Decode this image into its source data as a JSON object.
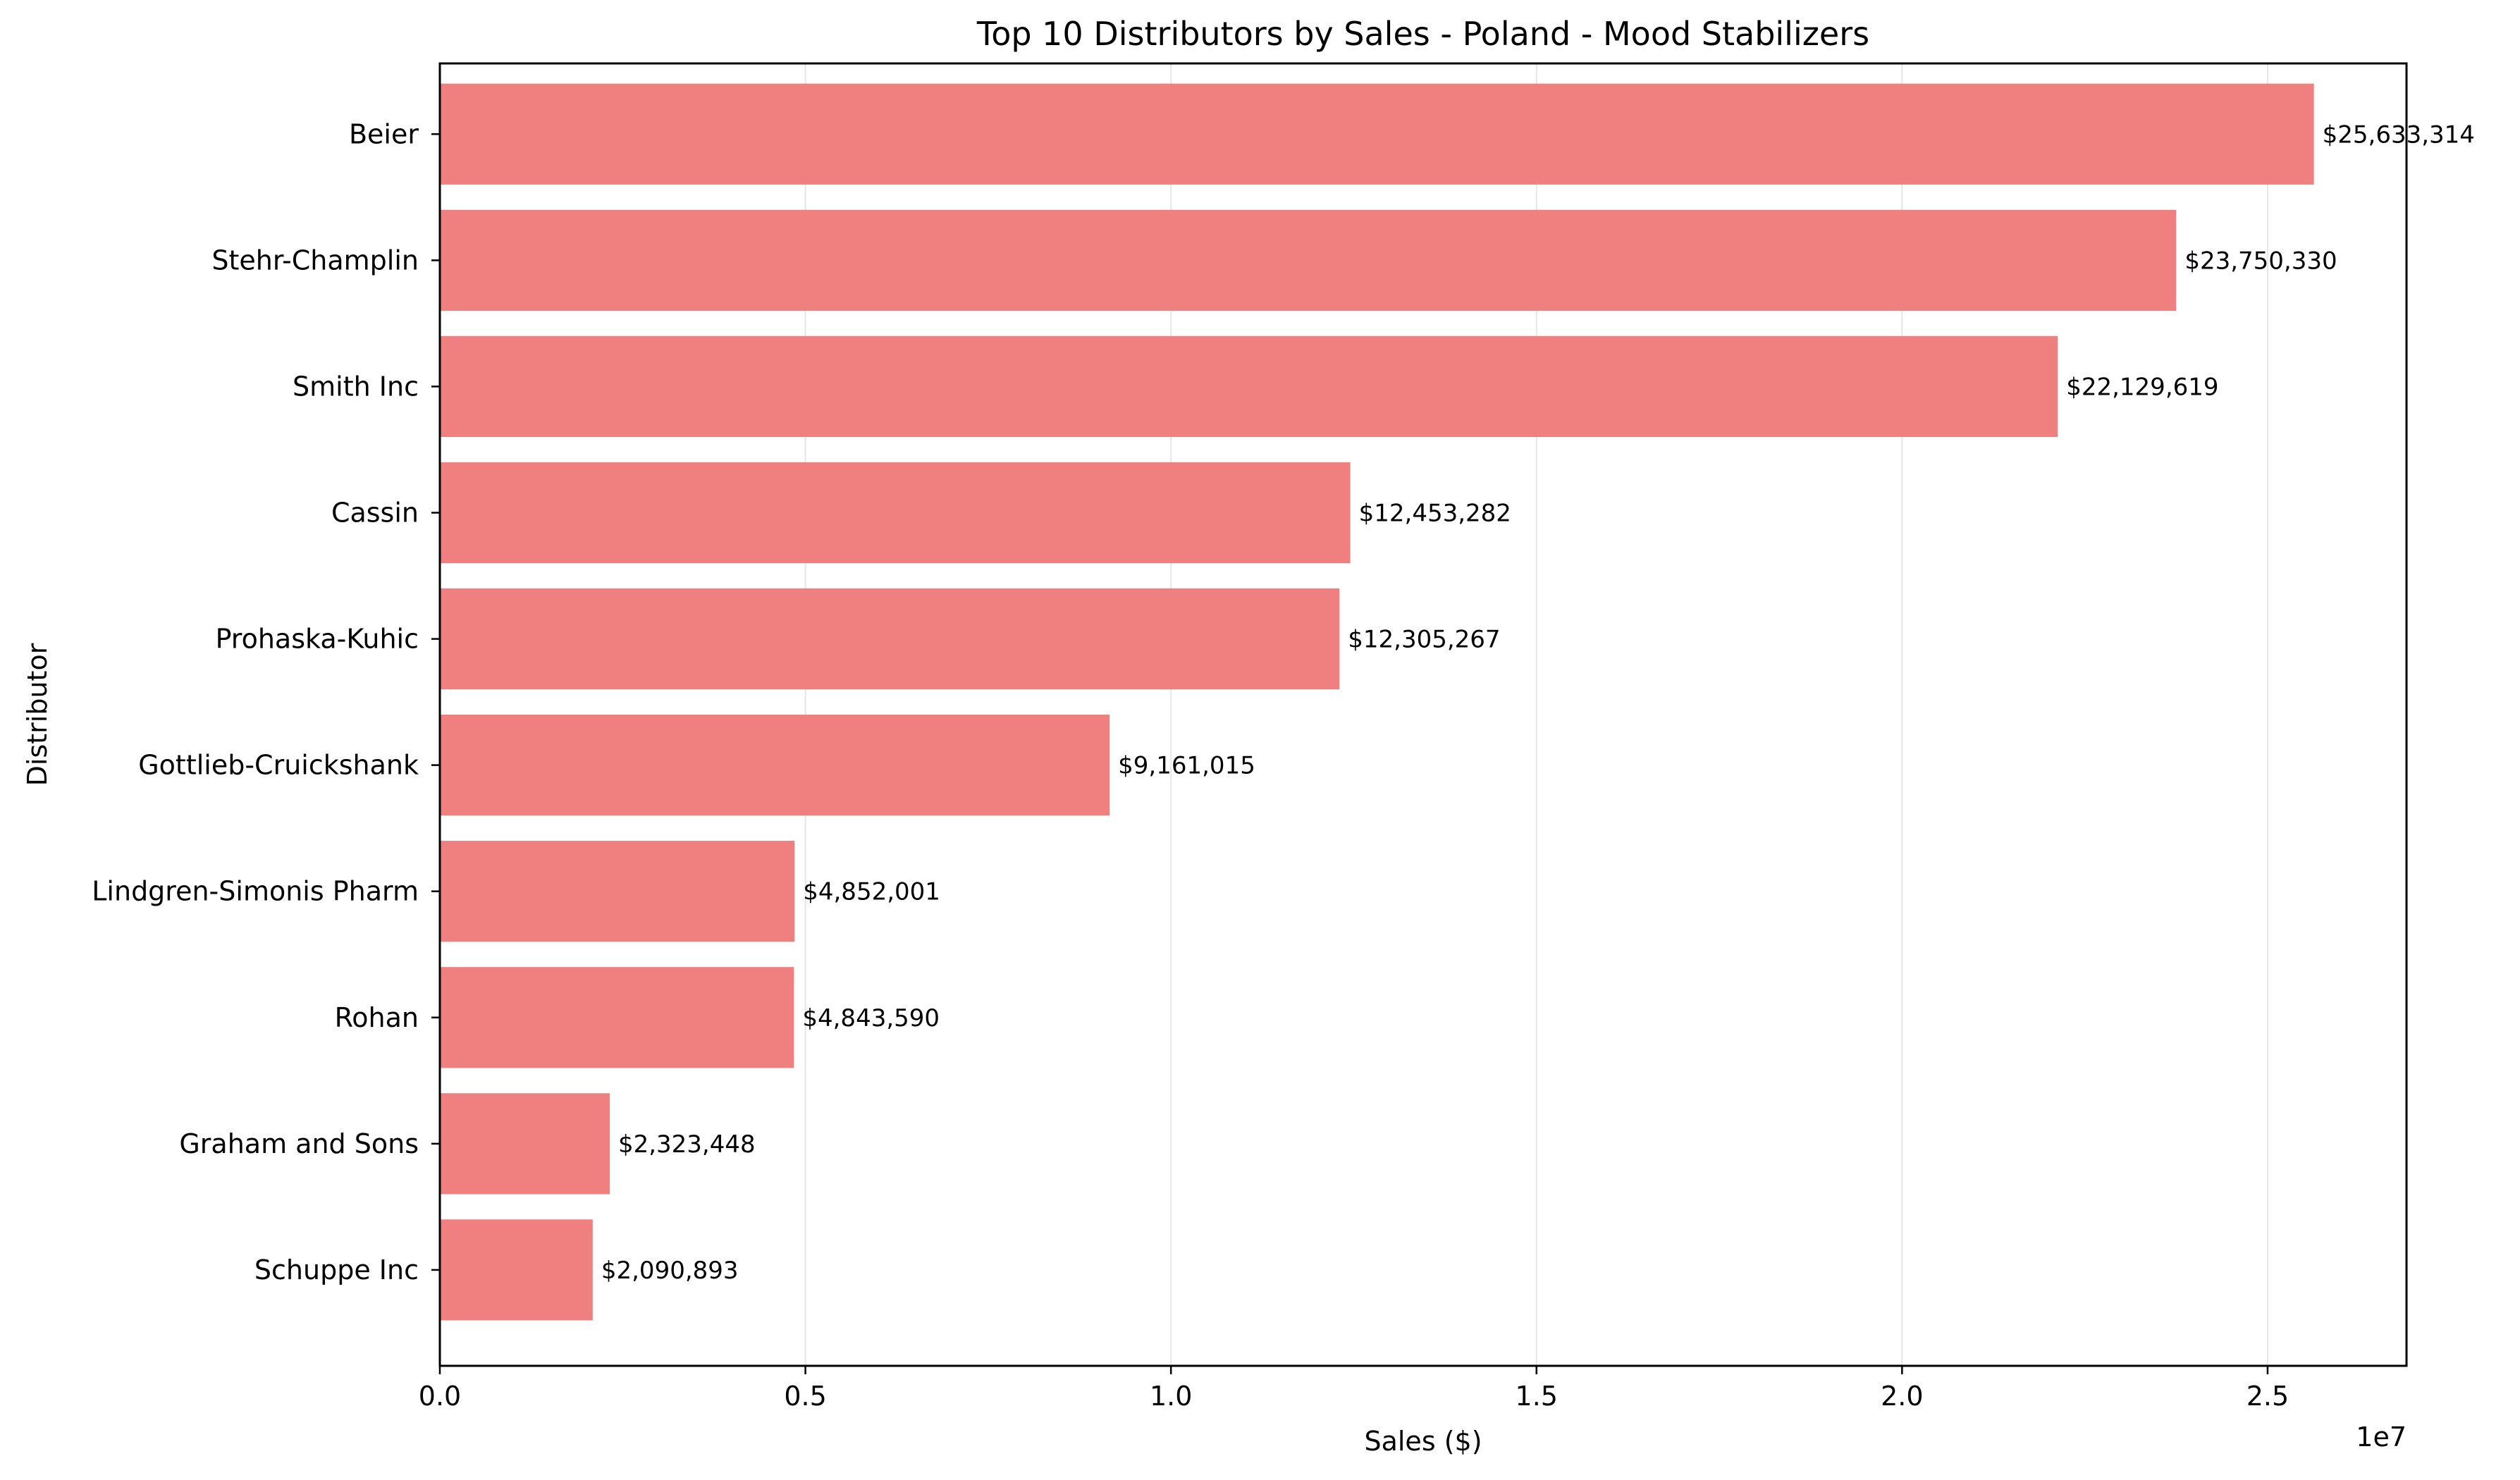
{
  "chart_data": {
    "type": "bar",
    "orientation": "horizontal",
    "title": "Top 10 Distributors by Sales - Poland - Mood Stabilizers",
    "xlabel": "Sales ($)",
    "ylabel": "Distributor",
    "x_offset_label": "1e7",
    "xlim": [
      0,
      26900000
    ],
    "x_ticks": [
      0,
      5000000,
      10000000,
      15000000,
      20000000,
      25000000
    ],
    "x_tick_labels": [
      "0.0",
      "0.5",
      "1.0",
      "1.5",
      "2.0",
      "2.5"
    ],
    "grid": "vertical",
    "bar_color": "#f08080",
    "categories": [
      "Beier",
      "Stehr-Champlin",
      "Smith Inc",
      "Cassin",
      "Prohaska-Kuhic",
      "Gottlieb-Cruickshank",
      "Lindgren-Simonis Pharm",
      "Rohan",
      "Graham and Sons",
      "Schuppe Inc"
    ],
    "values": [
      25633314,
      23750330,
      22129619,
      12453282,
      12305267,
      9161015,
      4852001,
      4843590,
      2323448,
      2090893
    ],
    "value_labels": [
      "$25,633,314",
      "$23,750,330",
      "$22,129,619",
      "$12,453,282",
      "$12,305,267",
      "$9,161,015",
      "$4,852,001",
      "$4,843,590",
      "$2,323,448",
      "$2,090,893"
    ]
  }
}
